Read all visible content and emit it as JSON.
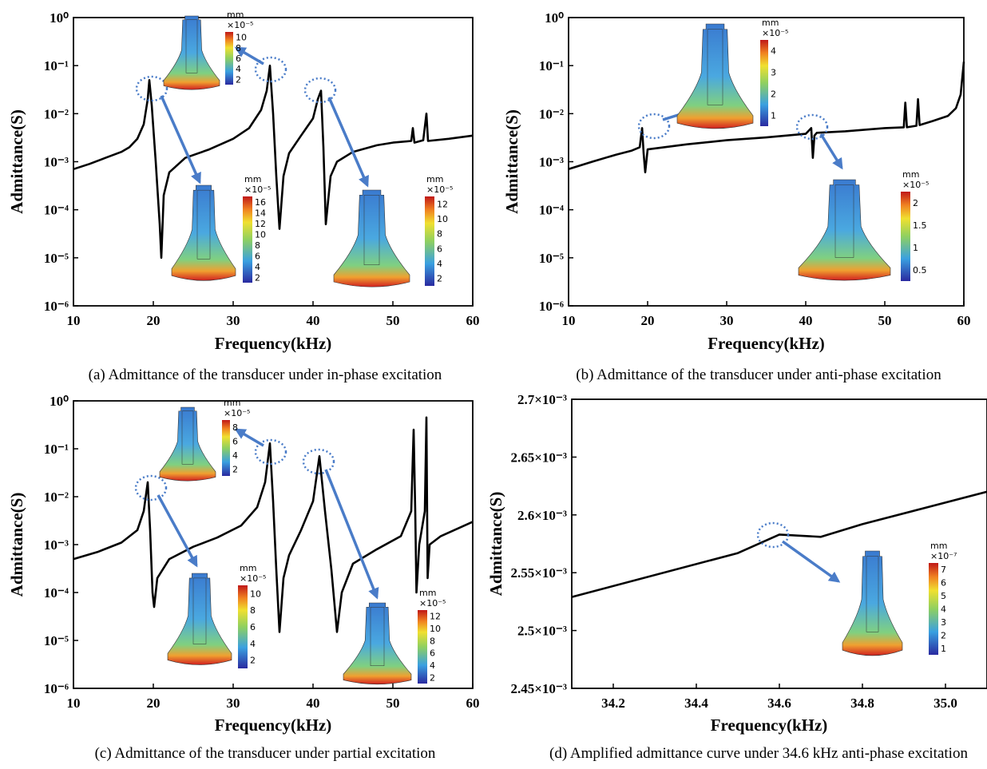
{
  "chart_data": [
    {
      "type": "line",
      "log_y": true,
      "caption": "(a) Admittance of the transducer under in-phase  excitation",
      "xlabel": "Frequency(kHz)",
      "ylabel": "Admittance(S)",
      "color": "#000000",
      "xlim": [
        10,
        60
      ],
      "xticks": [
        10,
        20,
        30,
        40,
        50,
        60
      ],
      "ylim": [
        1e-06,
        1
      ],
      "yticks": [
        {
          "value": 1e-06,
          "label": "10⁻⁶"
        },
        {
          "value": 1e-05,
          "label": "10⁻⁵"
        },
        {
          "value": 0.0001,
          "label": "10⁻⁴"
        },
        {
          "value": 0.001,
          "label": "10⁻³"
        },
        {
          "value": 0.01,
          "label": "10⁻²"
        },
        {
          "value": 0.1,
          "label": "10⁻¹"
        },
        {
          "value": 1,
          "label": "10⁰"
        }
      ],
      "x": [
        10,
        12,
        14,
        16,
        17,
        18,
        18.8,
        19.3,
        19.5,
        19.8,
        20.3,
        20.8,
        21,
        21.3,
        22,
        24,
        27,
        30,
        32,
        33.5,
        34.2,
        34.6,
        35,
        35.4,
        35.8,
        36.3,
        37,
        38.5,
        40,
        40.6,
        41,
        41.3,
        41.6,
        42.2,
        43,
        45,
        48,
        50,
        52.3,
        52.5,
        52.7,
        53.8,
        54.2,
        54.4,
        57,
        60
      ],
      "values": [
        0.0007,
        0.0009,
        0.0012,
        0.0016,
        0.002,
        0.003,
        0.006,
        0.02,
        0.05,
        0.015,
        0.001,
        5e-05,
        1e-05,
        0.0002,
        0.0006,
        0.0012,
        0.0018,
        0.003,
        0.005,
        0.012,
        0.03,
        0.1,
        0.01,
        0.0005,
        4e-05,
        0.0005,
        0.0015,
        0.0035,
        0.008,
        0.02,
        0.03,
        0.002,
        5e-05,
        0.0005,
        0.001,
        0.0016,
        0.0022,
        0.0025,
        0.0027,
        0.005,
        0.0025,
        0.0028,
        0.01,
        0.0027,
        0.003,
        0.0035
      ],
      "insets": [
        {
          "unit": "mm",
          "scale": "×10⁻⁵",
          "ticks": [
            10,
            8,
            6,
            4,
            2
          ]
        },
        {
          "unit": "mm",
          "scale": "×10⁻⁵",
          "ticks": [
            16,
            14,
            12,
            10,
            8,
            6,
            4,
            2
          ]
        },
        {
          "unit": "mm",
          "scale": "×10⁻⁵",
          "ticks": [
            12,
            10,
            8,
            6,
            4,
            2
          ]
        }
      ]
    },
    {
      "type": "line",
      "log_y": true,
      "caption": "(b) Admittance of the transducer under anti-phase  excitation",
      "xlabel": "Frequency(kHz)",
      "ylabel": "Admittance(S)",
      "color": "#000000",
      "xlim": [
        10,
        60
      ],
      "xticks": [
        10,
        20,
        30,
        40,
        50,
        60
      ],
      "ylim": [
        1e-06,
        1
      ],
      "yticks": [
        {
          "value": 1e-06,
          "label": "10⁻⁶"
        },
        {
          "value": 1e-05,
          "label": "10⁻⁵"
        },
        {
          "value": 0.0001,
          "label": "10⁻⁴"
        },
        {
          "value": 0.001,
          "label": "10⁻³"
        },
        {
          "value": 0.01,
          "label": "10⁻²"
        },
        {
          "value": 0.1,
          "label": "10⁻¹"
        },
        {
          "value": 1,
          "label": "10⁰"
        }
      ],
      "x": [
        10,
        13,
        16,
        18,
        19,
        19.3,
        19.5,
        19.7,
        20,
        25,
        30,
        35,
        40,
        40.7,
        40.9,
        41.1,
        41.4,
        45,
        50,
        52.4,
        52.6,
        52.8,
        54,
        54.2,
        54.4,
        56,
        58,
        59,
        59.6,
        60
      ],
      "values": [
        0.0007,
        0.001,
        0.0014,
        0.0017,
        0.002,
        0.005,
        0.0015,
        0.0006,
        0.0018,
        0.0023,
        0.0028,
        0.0032,
        0.0038,
        0.005,
        0.0012,
        0.0035,
        0.004,
        0.0043,
        0.005,
        0.0052,
        0.017,
        0.0052,
        0.0056,
        0.02,
        0.0058,
        0.007,
        0.009,
        0.013,
        0.025,
        0.12
      ],
      "insets": [
        {
          "unit": "mm",
          "scale": "×10⁻⁵",
          "ticks": [
            4,
            3,
            2,
            1
          ]
        },
        {
          "unit": "mm",
          "scale": "×10⁻⁵",
          "ticks": [
            2,
            1.5,
            1,
            0.5
          ]
        }
      ]
    },
    {
      "type": "line",
      "log_y": true,
      "caption": "(c) Admittance of the transducer under partial excitation",
      "xlabel": "Frequency(kHz)",
      "ylabel": "Admittance(S)",
      "color": "#000000",
      "xlim": [
        10,
        60
      ],
      "xticks": [
        10,
        20,
        30,
        40,
        50,
        60
      ],
      "ylim": [
        1e-06,
        1
      ],
      "yticks": [
        {
          "value": 1e-06,
          "label": "10⁻⁶"
        },
        {
          "value": 1e-05,
          "label": "10⁻⁵"
        },
        {
          "value": 0.0001,
          "label": "10⁻⁴"
        },
        {
          "value": 0.001,
          "label": "10⁻³"
        },
        {
          "value": 0.01,
          "label": "10⁻²"
        },
        {
          "value": 0.1,
          "label": "10⁻¹"
        },
        {
          "value": 1,
          "label": "10⁰"
        }
      ],
      "x": [
        10,
        13,
        16,
        18,
        18.8,
        19.3,
        19.6,
        19.9,
        20.1,
        20.5,
        22,
        25,
        28,
        31,
        33,
        34,
        34.6,
        35,
        35.4,
        35.8,
        36.3,
        37,
        38.5,
        40,
        40.8,
        41.5,
        42.3,
        43,
        43.6,
        45,
        48,
        51,
        52.3,
        52.6,
        52.8,
        52.95,
        53.3,
        54,
        54.2,
        54.35,
        54.6,
        56,
        60
      ],
      "values": [
        0.0005,
        0.0007,
        0.0011,
        0.002,
        0.005,
        0.02,
        0.002,
        0.0001,
        5e-05,
        0.0002,
        0.0005,
        0.0009,
        0.0014,
        0.0025,
        0.006,
        0.02,
        0.13,
        0.008,
        0.0003,
        1.5e-05,
        0.0002,
        0.0006,
        0.002,
        0.008,
        0.07,
        0.005,
        0.0003,
        1.5e-05,
        0.0001,
        0.0004,
        0.0008,
        0.0015,
        0.005,
        0.25,
        0.005,
        0.0001,
        0.001,
        0.005,
        0.45,
        0.0002,
        0.001,
        0.0015,
        0.003
      ],
      "insets": [
        {
          "unit": "mm",
          "scale": "×10⁻⁵",
          "ticks": [
            8,
            6,
            4,
            2
          ]
        },
        {
          "unit": "mm",
          "scale": "×10⁻⁵",
          "ticks": [
            10,
            8,
            6,
            4,
            2
          ]
        },
        {
          "unit": "mm",
          "scale": "×10⁻⁵",
          "ticks": [
            12,
            10,
            8,
            6,
            4,
            2
          ]
        }
      ]
    },
    {
      "type": "line",
      "log_y": false,
      "caption": "(d) Amplified admittance curve under 34.6 kHz anti-phase excitation",
      "xlabel": "Frequency(kHz)",
      "ylabel": "Admittance(S)",
      "color": "#000000",
      "xlim": [
        34.1,
        35.1
      ],
      "xticks": [
        34.2,
        34.4,
        34.6,
        34.8,
        {
          "value": 35,
          "label": "35.0"
        }
      ],
      "ylim": [
        0.00245,
        0.0027
      ],
      "yticks": [
        {
          "value": 0.00245,
          "label": "2.45×10⁻³"
        },
        {
          "value": 0.0025,
          "label": "2.5×10⁻³"
        },
        {
          "value": 0.00255,
          "label": "2.55×10⁻³"
        },
        {
          "value": 0.0026,
          "label": "2.6×10⁻³"
        },
        {
          "value": 0.00265,
          "label": "2.65×10⁻³"
        },
        {
          "value": 0.0027,
          "label": "2.7×10⁻³"
        }
      ],
      "x": [
        34.1,
        34.5,
        34.6,
        34.7,
        34.8,
        35.1
      ],
      "values": [
        0.002529,
        0.002567,
        0.002583,
        0.002581,
        0.002592,
        0.00262
      ],
      "insets": [
        {
          "unit": "mm",
          "scale": "×10⁻⁷",
          "ticks": [
            7,
            6,
            5,
            4,
            3,
            2,
            1
          ]
        }
      ]
    }
  ]
}
